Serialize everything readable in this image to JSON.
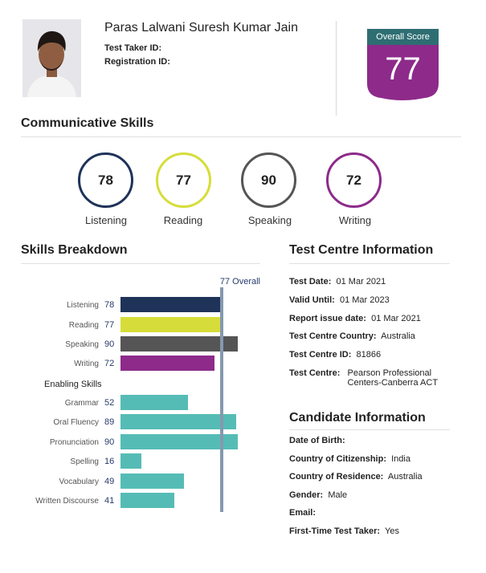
{
  "candidate": {
    "name": "Paras Lalwani Suresh Kumar Jain",
    "test_taker_id_label": "Test Taker ID:",
    "registration_id_label": "Registration ID:"
  },
  "overall": {
    "label": "Overall Score",
    "score": "77",
    "marker_text": "77 Overall",
    "value": 77
  },
  "communicative": {
    "title": "Communicative Skills",
    "skills": [
      {
        "name": "Listening",
        "score": "78",
        "color": "#1f3359"
      },
      {
        "name": "Reading",
        "score": "77",
        "color": "#d6dd3a"
      },
      {
        "name": "Speaking",
        "score": "90",
        "color": "#555555"
      },
      {
        "name": "Writing",
        "score": "72",
        "color": "#8d2a8a"
      }
    ]
  },
  "breakdown": {
    "title": "Skills Breakdown",
    "enabling_label": "Enabling Skills",
    "communicative_bars": [
      {
        "label": "Listening",
        "value": "78",
        "num": 78,
        "color": "#1f3359"
      },
      {
        "label": "Reading",
        "value": "77",
        "num": 77,
        "color": "#d6dd3a"
      },
      {
        "label": "Speaking",
        "value": "90",
        "num": 90,
        "color": "#555555"
      },
      {
        "label": "Writing",
        "value": "72",
        "num": 72,
        "color": "#8d2a8a"
      }
    ],
    "enabling_bars": [
      {
        "label": "Grammar",
        "value": "52",
        "num": 52,
        "color": "#55bcb5"
      },
      {
        "label": "Oral Fluency",
        "value": "89",
        "num": 89,
        "color": "#55bcb5"
      },
      {
        "label": "Pronunciation",
        "value": "90",
        "num": 90,
        "color": "#55bcb5"
      },
      {
        "label": "Spelling",
        "value": "16",
        "num": 16,
        "color": "#55bcb5"
      },
      {
        "label": "Vocabulary",
        "value": "49",
        "num": 49,
        "color": "#55bcb5"
      },
      {
        "label": "Written Discourse",
        "value": "41",
        "num": 41,
        "color": "#55bcb5"
      }
    ]
  },
  "test_centre": {
    "title": "Test Centre Information",
    "rows": [
      {
        "label": "Test Date:",
        "value": "01 Mar 2021"
      },
      {
        "label": "Valid Until:",
        "value": "01 Mar 2023"
      },
      {
        "label": "Report issue date:",
        "value": "01 Mar 2021"
      },
      {
        "label": "Test Centre Country:",
        "value": "Australia"
      },
      {
        "label": "Test Centre ID:",
        "value": "81866"
      }
    ],
    "centre_label": "Test Centre:",
    "centre_line1": "Pearson Professional",
    "centre_line2": "Centers-Canberra ACT"
  },
  "candidate_info": {
    "title": "Candidate Information",
    "rows": [
      {
        "label": "Date of Birth:",
        "value": ""
      },
      {
        "label": "Country of Citizenship:",
        "value": "India"
      },
      {
        "label": "Country of Residence:",
        "value": "Australia"
      },
      {
        "label": "Gender:",
        "value": "Male"
      },
      {
        "label": "Email:",
        "value": ""
      },
      {
        "label": "First-Time Test Taker:",
        "value": "Yes"
      }
    ]
  },
  "colors": {
    "badge": "#8d2a8a",
    "badge_header": "#2e6e73",
    "bar_scale_max": 90
  }
}
